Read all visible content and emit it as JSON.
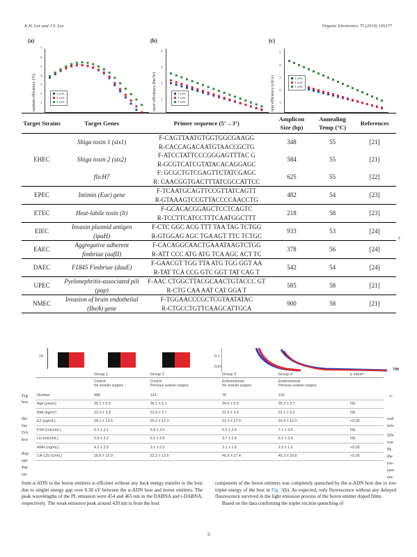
{
  "header": {
    "authors": "K.H. Lee and J.Y. Lee",
    "journal": "Organic Electronics 75 (2019) 105377"
  },
  "charts": {
    "a": {
      "label": "(a)",
      "ylabel": "uantum efficiency (%)",
      "yticks": [
        "7",
        "6",
        "5",
        "4",
        "3",
        "2",
        "1"
      ],
      "legend": [
        "1 wt%",
        "3 wt%",
        "5 wt%"
      ]
    },
    "b": {
      "label": "(b)",
      "ylabel": "ower efficiency (lm/W)",
      "yticks": [
        "4",
        "3",
        "2",
        "1"
      ],
      "legend": [
        "1 wt%",
        "3 wt%",
        "5 wt%"
      ]
    },
    "c": {
      "label": "(c)",
      "ylabel": "rent efficiency (cd/A)",
      "yticks": [
        "5",
        "4",
        "3",
        "2",
        "1"
      ],
      "legend": [
        "1 wt%",
        "3 wt%",
        "5 wt%"
      ]
    },
    "colors": {
      "s1": "#1f3fb5",
      "s2": "#e0262c",
      "s3": "#2e8b3a"
    }
  },
  "primer_table": {
    "headers": {
      "strain": "Target Strains",
      "genes": "Target Genes",
      "primer": "Primer sequence (5’→3’)",
      "amplicon": "Amplicon Size (bp)",
      "annealing": "Annealing Temp (°C)",
      "refs": "References"
    },
    "rows": [
      {
        "strain": "EHEC",
        "gene": "Shiga toxin 1 (stx1)",
        "f": "F-CAGTTAATGTGGTGGCGAAGG",
        "r": "R-CACCAGACAATGTAACCGCTG",
        "size": "348",
        "temp": "55",
        "ref": "[21]"
      },
      {
        "strain": "",
        "gene": "Shiga toxin 2 (stx2)",
        "f": "F-ATCCTATTCCCGGGAGTTTAC G",
        "r": "R-GCGTCATCGTATACACAGGAGC",
        "size": "584",
        "temp": "55",
        "ref": "[21]"
      },
      {
        "strain": "",
        "gene": "flicH7",
        "f": "F: GCGCTGTCGAGTTCTATCGAGC",
        "r": "R: CAACGGTGACTTTATCGCCATTCC",
        "size": "625",
        "temp": "55",
        "ref": "[22]"
      },
      {
        "strain": "EPEC",
        "gene": "Intimin (Eae) gene",
        "f": "F-TCAATGCAGTTCCGTTATCAGTT",
        "r": "R-GTAAAGTCCGTTACCCCAACCTG",
        "size": "482",
        "temp": "54",
        "ref": "[23]"
      },
      {
        "strain": "ETEC",
        "gene": "Heat-labile toxin (lt)",
        "f": "F-GCACACGGAGCTCCTCAGTC",
        "r": "R-TCCTTCATCCTTTCAATGGCTTT",
        "size": "218",
        "temp": "58",
        "ref": "[23]"
      },
      {
        "strain": "EIEC",
        "gene": "Invasin plasmid antigen (ipaH)",
        "f": "F-CTC GGC ACG TTT TAA TAG TCTGG",
        "r": "R-GTGGAG AGC TGA AGT TTC TCTGC",
        "size": "933",
        "temp": "53",
        "ref": "[24]"
      },
      {
        "strain": "EAEC",
        "gene": "Aggregative adherent fimbriae (aafII)",
        "f": "F-CACAGGCAACTGAAATAAGTCTGG",
        "r": "R-ATT CCC ATG ATG TCA AGC ACT TC",
        "size": "378",
        "temp": "56",
        "ref": "[24]"
      },
      {
        "strain": "DAEC",
        "gene": "F1845 Fimbriae (daaE)",
        "f": "F-GAACGT TGG TTA ATG TGG GGT AA",
        "r": "R-TAT TCA CCG GTC GGT TAT CAG T",
        "size": "542",
        "temp": "54",
        "ref": "[24]"
      },
      {
        "strain": "UPEC",
        "gene": "Pyelonephritis-associated pili (pap)",
        "f": "F-AAC CTGGCTTACGCAACTGTACCC GT",
        "r": "R-CTG CAA AAT CAT GGA T",
        "size": "585",
        "temp": "58",
        "ref": "[21]"
      },
      {
        "strain": "NMEC",
        "gene": "Invasion of brain endothelial (IbeA) gene",
        "f": "F-TGGAACCCGCTCGTAATATAC",
        "r": "R-CTGCCTGTTCAAGCATTGCA",
        "size": "900",
        "temp": "58",
        "ref": "[21]"
      }
    ]
  },
  "lower_strip": {
    "ytick": "10",
    "label1": "0.1",
    "label2": "0.01",
    "xtick": "700"
  },
  "group_table": {
    "groups": [
      "Group 1",
      "Group 2",
      "Group 3",
      "Group 4",
      "p valueᵃ"
    ],
    "subs": [
      "Control:\nNo ovarian surgery",
      "Control:\nPrevious ovarian surgery",
      "Endometriosis:\nNo ovarian surgery",
      "Endometriosis:\nPrevious ovarian surgery"
    ],
    "rows": [
      [
        "Number",
        "496",
        "124",
        "76",
        "133",
        ""
      ],
      [
        "Age (years)",
        "35.1 ± 5.9",
        "36.1 ± 5.1",
        "34.0 ± 5.0",
        "35.3 ± 3.7",
        "NS"
      ],
      [
        "BMI (kg/m²)",
        "22.0 ± 3.8",
        "22.6 ± 3.7",
        "21.5 ± 3.4",
        "22.1 ± 3.3",
        "NS"
      ],
      [
        "E2 (pg/mL)",
        "28.1 ± 13.5",
        "20.2 ± 12.3",
        "31.3 ± 17.0",
        "24.4 ± 12.0",
        "<0.05"
      ],
      [
        "FSH (mIU/mL)",
        "6.2 ± 3.1",
        "5.8 ± 3.0",
        "6.0 ± 3.5",
        "7.1 ± 3.5",
        "NS"
      ],
      [
        "LH (mIU/mL)",
        "5.5 ± 3.2",
        "6.1 ± 3.6",
        "3.7 ± 2.4",
        "6.2 ± 3.8",
        "NS"
      ],
      [
        "AMH (ng/mL)",
        "4.2 ± 2.0",
        "3.1 ± 2.0",
        "3.1 ± 1.8",
        "2.3 ± 1.0",
        "<0.05"
      ],
      [
        "CA-125 (U/mL)",
        "18.6 ± 12.9",
        "22.2 ± 13.6",
        "40.9 ± 27.4",
        "45.3 ± 29.8",
        "<0.05"
      ]
    ]
  },
  "left_fragments": [
    "Fig",
    "hos",
    "the",
    "fus",
    "DA",
    "hos",
    "dop",
    "spe",
    "Pur",
    "ser"
  ],
  "right_fragments": [
    "s.",
    "zed",
    "ters",
    "DN",
    "ron",
    "PL",
    "the",
    "res-",
    "rere",
    "ent",
    "y"
  ],
  "body": {
    "left_col": "from α-ADN to the boron emitters is efficient without any back energy transfer to the host due to singlet energy gap over 0.30 eV between the α-ADN host and boron emitters. The peak wavelengths of the PL emission were 454 and 465 nm in the DABNA and t-DABNA, respectively. The weak emission peak around 420 nm is from the host",
    "right_col_a": "component of the boron emitters was completely quenched by the α-ADN host due to low triplet energy of the host in ",
    "right_col_link": "Fig. 3",
    "right_col_b": "(b). As expected, only fluorescence without any delayed fluorescence survived in the light emission process of the boron emitter doped films.",
    "right_col_c": "Based on the data confirming the triplet exciton quenching of"
  },
  "page_number": "3"
}
